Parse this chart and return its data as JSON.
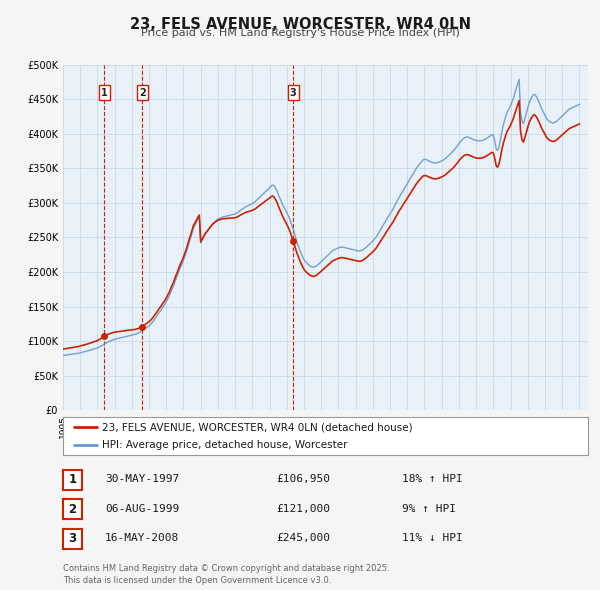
{
  "title": "23, FELS AVENUE, WORCESTER, WR4 0LN",
  "subtitle": "Price paid vs. HM Land Registry's House Price Index (HPI)",
  "ylim": [
    0,
    500000
  ],
  "yticks": [
    0,
    50000,
    100000,
    150000,
    200000,
    250000,
    300000,
    350000,
    400000,
    450000,
    500000
  ],
  "xlim": [
    1995.0,
    2025.5
  ],
  "background_color": "#f5f5f5",
  "plot_bg_color": "#e8f0f8",
  "grid_color": "#c8d8e8",
  "sale_color": "#cc2200",
  "hpi_color": "#6699cc",
  "vline_color": "#cc2200",
  "sale_label": "23, FELS AVENUE, WORCESTER, WR4 0LN (detached house)",
  "hpi_label": "HPI: Average price, detached house, Worcester",
  "transactions": [
    {
      "num": 1,
      "date": "30-MAY-1997",
      "price": 106950,
      "pct": "18%",
      "dir": "↑",
      "x": 1997.41
    },
    {
      "num": 2,
      "date": "06-AUG-1999",
      "price": 121000,
      "pct": "9%",
      "dir": "↑",
      "x": 1999.6
    },
    {
      "num": 3,
      "date": "16-MAY-2008",
      "price": 245000,
      "pct": "11%",
      "dir": "↓",
      "x": 2008.37
    }
  ],
  "footer": "Contains HM Land Registry data © Crown copyright and database right 2025.\nThis data is licensed under the Open Government Licence v3.0.",
  "hpi_x": [
    1995.0,
    1995.08,
    1995.17,
    1995.25,
    1995.33,
    1995.42,
    1995.5,
    1995.58,
    1995.67,
    1995.75,
    1995.83,
    1995.92,
    1996.0,
    1996.08,
    1996.17,
    1996.25,
    1996.33,
    1996.42,
    1996.5,
    1996.58,
    1996.67,
    1996.75,
    1996.83,
    1996.92,
    1997.0,
    1997.08,
    1997.17,
    1997.25,
    1997.33,
    1997.42,
    1997.5,
    1997.58,
    1997.67,
    1997.75,
    1997.83,
    1997.92,
    1998.0,
    1998.08,
    1998.17,
    1998.25,
    1998.33,
    1998.42,
    1998.5,
    1998.58,
    1998.67,
    1998.75,
    1998.83,
    1998.92,
    1999.0,
    1999.08,
    1999.17,
    1999.25,
    1999.33,
    1999.42,
    1999.5,
    1999.58,
    1999.67,
    1999.75,
    1999.83,
    1999.92,
    2000.0,
    2000.08,
    2000.17,
    2000.25,
    2000.33,
    2000.42,
    2000.5,
    2000.58,
    2000.67,
    2000.75,
    2000.83,
    2000.92,
    2001.0,
    2001.08,
    2001.17,
    2001.25,
    2001.33,
    2001.42,
    2001.5,
    2001.58,
    2001.67,
    2001.75,
    2001.83,
    2001.92,
    2002.0,
    2002.08,
    2002.17,
    2002.25,
    2002.33,
    2002.42,
    2002.5,
    2002.58,
    2002.67,
    2002.75,
    2002.83,
    2002.92,
    2003.0,
    2003.08,
    2003.17,
    2003.25,
    2003.33,
    2003.42,
    2003.5,
    2003.58,
    2003.67,
    2003.75,
    2003.83,
    2003.92,
    2004.0,
    2004.08,
    2004.17,
    2004.25,
    2004.33,
    2004.42,
    2004.5,
    2004.58,
    2004.67,
    2004.75,
    2004.83,
    2004.92,
    2005.0,
    2005.08,
    2005.17,
    2005.25,
    2005.33,
    2005.42,
    2005.5,
    2005.58,
    2005.67,
    2005.75,
    2005.83,
    2005.92,
    2006.0,
    2006.08,
    2006.17,
    2006.25,
    2006.33,
    2006.42,
    2006.5,
    2006.58,
    2006.67,
    2006.75,
    2006.83,
    2006.92,
    2007.0,
    2007.08,
    2007.17,
    2007.25,
    2007.33,
    2007.42,
    2007.5,
    2007.58,
    2007.67,
    2007.75,
    2007.83,
    2007.92,
    2008.0,
    2008.08,
    2008.17,
    2008.25,
    2008.33,
    2008.42,
    2008.5,
    2008.58,
    2008.67,
    2008.75,
    2008.83,
    2008.92,
    2009.0,
    2009.08,
    2009.17,
    2009.25,
    2009.33,
    2009.42,
    2009.5,
    2009.58,
    2009.67,
    2009.75,
    2009.83,
    2009.92,
    2010.0,
    2010.08,
    2010.17,
    2010.25,
    2010.33,
    2010.42,
    2010.5,
    2010.58,
    2010.67,
    2010.75,
    2010.83,
    2010.92,
    2011.0,
    2011.08,
    2011.17,
    2011.25,
    2011.33,
    2011.42,
    2011.5,
    2011.58,
    2011.67,
    2011.75,
    2011.83,
    2011.92,
    2012.0,
    2012.08,
    2012.17,
    2012.25,
    2012.33,
    2012.42,
    2012.5,
    2012.58,
    2012.67,
    2012.75,
    2012.83,
    2012.92,
    2013.0,
    2013.08,
    2013.17,
    2013.25,
    2013.33,
    2013.42,
    2013.5,
    2013.58,
    2013.67,
    2013.75,
    2013.83,
    2013.92,
    2014.0,
    2014.08,
    2014.17,
    2014.25,
    2014.33,
    2014.42,
    2014.5,
    2014.58,
    2014.67,
    2014.75,
    2014.83,
    2014.92,
    2015.0,
    2015.08,
    2015.17,
    2015.25,
    2015.33,
    2015.42,
    2015.5,
    2015.58,
    2015.67,
    2015.75,
    2015.83,
    2015.92,
    2016.0,
    2016.08,
    2016.17,
    2016.25,
    2016.33,
    2016.42,
    2016.5,
    2016.58,
    2016.67,
    2016.75,
    2016.83,
    2016.92,
    2017.0,
    2017.08,
    2017.17,
    2017.25,
    2017.33,
    2017.42,
    2017.5,
    2017.58,
    2017.67,
    2017.75,
    2017.83,
    2017.92,
    2018.0,
    2018.08,
    2018.17,
    2018.25,
    2018.33,
    2018.42,
    2018.5,
    2018.58,
    2018.67,
    2018.75,
    2018.83,
    2018.92,
    2019.0,
    2019.08,
    2019.17,
    2019.25,
    2019.33,
    2019.42,
    2019.5,
    2019.58,
    2019.67,
    2019.75,
    2019.83,
    2019.92,
    2020.0,
    2020.08,
    2020.17,
    2020.25,
    2020.33,
    2020.42,
    2020.5,
    2020.58,
    2020.67,
    2020.75,
    2020.83,
    2020.92,
    2021.0,
    2021.08,
    2021.17,
    2021.25,
    2021.33,
    2021.42,
    2021.5,
    2021.58,
    2021.67,
    2021.75,
    2021.83,
    2021.92,
    2022.0,
    2022.08,
    2022.17,
    2022.25,
    2022.33,
    2022.42,
    2022.5,
    2022.58,
    2022.67,
    2022.75,
    2022.83,
    2022.92,
    2023.0,
    2023.08,
    2023.17,
    2023.25,
    2023.33,
    2023.42,
    2023.5,
    2023.58,
    2023.67,
    2023.75,
    2023.83,
    2023.92,
    2024.0,
    2024.08,
    2024.17,
    2024.25,
    2024.33,
    2024.42,
    2024.5,
    2024.58,
    2024.67,
    2024.75,
    2024.83,
    2024.92,
    2025.0
  ],
  "hpi_y": [
    79000,
    79300,
    79600,
    79900,
    80200,
    80500,
    80800,
    81100,
    81400,
    81700,
    82000,
    82400,
    83000,
    83500,
    84000,
    84500,
    85000,
    85600,
    86200,
    86800,
    87400,
    88000,
    88700,
    89400,
    90000,
    91000,
    92000,
    93200,
    94500,
    95800,
    97000,
    98200,
    99200,
    100200,
    101000,
    101800,
    102500,
    103000,
    103500,
    104000,
    104500,
    105000,
    105500,
    106000,
    106500,
    107000,
    107500,
    108000,
    108500,
    109000,
    109500,
    110200,
    111000,
    112000,
    113200,
    114500,
    116000,
    117500,
    119000,
    120500,
    122000,
    124000,
    126500,
    129000,
    132000,
    135000,
    138000,
    141000,
    144000,
    147000,
    150000,
    153500,
    157000,
    161000,
    165000,
    170000,
    175000,
    180000,
    185500,
    191000,
    196500,
    202000,
    207000,
    212000,
    217000,
    223000,
    229000,
    236000,
    243000,
    250000,
    257000,
    264000,
    268000,
    272000,
    276000,
    280000,
    242000,
    246000,
    250000,
    254000,
    257000,
    260000,
    263000,
    266000,
    269000,
    271000,
    273000,
    275000,
    276500,
    277500,
    278500,
    279500,
    280000,
    280500,
    281000,
    281500,
    282000,
    282500,
    283000,
    283500,
    284000,
    285000,
    286500,
    288000,
    289500,
    291000,
    292500,
    294000,
    295000,
    296000,
    297000,
    298000,
    299000,
    300500,
    302000,
    304000,
    306000,
    308000,
    310000,
    312000,
    314000,
    316000,
    318000,
    320000,
    322000,
    324000,
    326000,
    325000,
    322000,
    318000,
    313000,
    308000,
    303000,
    298000,
    294000,
    290000,
    286000,
    282000,
    277000,
    271000,
    265000,
    258000,
    251000,
    244000,
    238000,
    232000,
    227000,
    222000,
    218000,
    215000,
    213000,
    211000,
    209000,
    208000,
    207000,
    207000,
    208000,
    209000,
    211000,
    213000,
    215000,
    217000,
    219000,
    221000,
    223000,
    225000,
    227000,
    229000,
    231000,
    232000,
    233000,
    234000,
    235000,
    235500,
    236000,
    236000,
    235500,
    235000,
    234500,
    234000,
    233500,
    233000,
    232500,
    232000,
    231500,
    231000,
    230500,
    230500,
    231000,
    232000,
    233500,
    235000,
    237000,
    239000,
    241000,
    243000,
    245000,
    247500,
    250000,
    253000,
    256500,
    260000,
    263500,
    267000,
    270500,
    274000,
    277500,
    281000,
    284000,
    287500,
    291000,
    295000,
    299000,
    303000,
    307000,
    310500,
    314000,
    317500,
    321000,
    324500,
    328000,
    331500,
    335000,
    338500,
    342000,
    345500,
    349000,
    352000,
    355000,
    357500,
    360000,
    362500,
    363000,
    363000,
    362000,
    361000,
    360000,
    359000,
    358500,
    358000,
    358000,
    358500,
    359000,
    360000,
    361000,
    362000,
    363500,
    365000,
    367000,
    369000,
    371000,
    373000,
    375000,
    377500,
    380000,
    383000,
    386000,
    388500,
    391000,
    393000,
    394500,
    395500,
    395500,
    395000,
    394000,
    393000,
    392000,
    391000,
    390500,
    390000,
    390000,
    390000,
    390500,
    391000,
    392000,
    393000,
    394500,
    396000,
    397500,
    399000,
    398000,
    390000,
    378000,
    376000,
    381000,
    392000,
    404000,
    413000,
    421000,
    428000,
    433000,
    437000,
    441000,
    446000,
    452000,
    459000,
    466000,
    473000,
    479000,
    432000,
    418000,
    415000,
    422000,
    430000,
    438000,
    445000,
    450000,
    454000,
    457000,
    457000,
    454000,
    450000,
    445000,
    440000,
    435000,
    431000,
    427000,
    423000,
    420000,
    418000,
    417000,
    416000,
    416000,
    417000,
    418000,
    420000,
    422000,
    424000,
    426000,
    428000,
    430000,
    432000,
    434000,
    436000,
    437000,
    438000,
    439000,
    440000,
    441000,
    442000,
    443000
  ]
}
